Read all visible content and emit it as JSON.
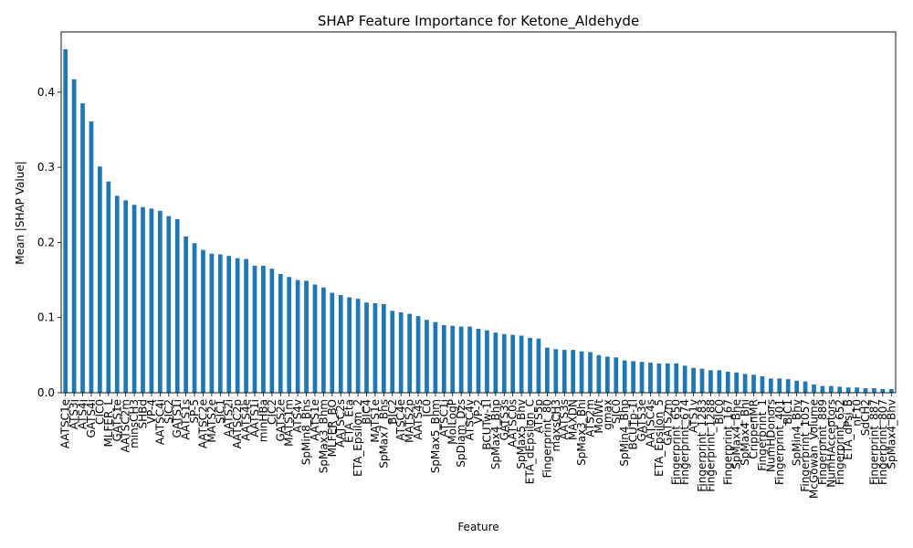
{
  "chart_data": {
    "type": "bar",
    "title": "SHAP Feature Importance for Ketone_Aldehyde",
    "xlabel": "Feature",
    "ylabel": "Mean |SHAP Value|",
    "ylim": [
      0,
      0.48
    ],
    "yticks": [
      "0.0",
      "0.1",
      "0.2",
      "0.3",
      "0.4"
    ],
    "grid": false,
    "bar_color": "#1f77b4",
    "categories": [
      "AATSC1e",
      "ATS3i",
      "ATS4i",
      "GATS4i",
      "CIC0",
      "MLFER_L",
      "GATS1e",
      "AATSC2m",
      "minsCH3",
      "SHBd",
      "VP-4",
      "AATSC4i",
      "SIC2",
      "GATS1i",
      "AATS1s",
      "SP-5",
      "AATSC2e",
      "MATS2e",
      "SIC1",
      "AATS2i",
      "AATSC2p",
      "AATS4e",
      "AATS1i",
      "minHBa",
      "CIC2",
      "GATS2e",
      "MATS1m",
      "ATS4v",
      "SpMin8_Bhs",
      "AATS1e",
      "SpMax3_Bhm",
      "MLFER_BO",
      "AATSC2s",
      "ETA_Eta",
      "ETA_Epsilon_2",
      "BIC4",
      "MATS1e",
      "SpMax7_Bhs",
      "BIC2",
      "ATSC4e",
      "MATS2p",
      "AATS4s",
      "IC0",
      "SpMax5_Bhm",
      "ATSC1i",
      "MolLogP",
      "SpDiam_Dzs",
      "ATSC4v",
      "VP-2",
      "BCUTw-1l",
      "SpMax4_Bhp",
      "GATS3s",
      "AATSC0s",
      "SpMax5_Bhv",
      "ETA_dEpsilon_C",
      "ATS5p",
      "Fingerprint_80",
      "maxsCH3",
      "AATS3s",
      "MAXDN",
      "SpMax3_Bhi",
      "ATS2m",
      "MolWt",
      "gmax",
      "SIC0",
      "SpMin4_Bhp",
      "BCUTp-1l",
      "GATS3e",
      "AATSC4s",
      "ETA_Epsilon_5",
      "GATS2m",
      "Fingerprint_650",
      "Fingerprint_674",
      "ATS1v",
      "Fingerprint_1283",
      "Fingerprint_1288",
      "BIC0",
      "Fingerprint_167",
      "SpMax4_Bhe",
      "SpMax4_Bhi",
      "CrippenMR",
      "Fingerprint_1",
      "NumHDonors",
      "Fingerprint_401",
      "BIC1",
      "SpMin4_Bhv",
      "Fingerprint_1057",
      "McGowan_Volume",
      "Fingerprint_889",
      "NumHAcceptors",
      "Fingerprint_652",
      "ETA_dPsi_B",
      "nF10",
      "SdCH2",
      "Fingerprint_887",
      "Fingerprint_807",
      "SpMax4_Bhv"
    ],
    "values": [
      0.457,
      0.417,
      0.385,
      0.361,
      0.301,
      0.281,
      0.262,
      0.256,
      0.25,
      0.247,
      0.245,
      0.242,
      0.235,
      0.231,
      0.208,
      0.199,
      0.19,
      0.185,
      0.184,
      0.182,
      0.179,
      0.178,
      0.169,
      0.169,
      0.165,
      0.158,
      0.154,
      0.15,
      0.149,
      0.144,
      0.14,
      0.133,
      0.13,
      0.127,
      0.125,
      0.12,
      0.119,
      0.118,
      0.109,
      0.107,
      0.105,
      0.102,
      0.097,
      0.094,
      0.09,
      0.089,
      0.088,
      0.088,
      0.085,
      0.083,
      0.08,
      0.078,
      0.077,
      0.076,
      0.073,
      0.072,
      0.06,
      0.058,
      0.057,
      0.057,
      0.055,
      0.054,
      0.05,
      0.048,
      0.047,
      0.043,
      0.042,
      0.041,
      0.04,
      0.039,
      0.039,
      0.039,
      0.036,
      0.033,
      0.032,
      0.03,
      0.03,
      0.028,
      0.027,
      0.025,
      0.024,
      0.022,
      0.019,
      0.019,
      0.018,
      0.016,
      0.015,
      0.011,
      0.009,
      0.009,
      0.008,
      0.007,
      0.007,
      0.006,
      0.006,
      0.005,
      0.005
    ]
  }
}
